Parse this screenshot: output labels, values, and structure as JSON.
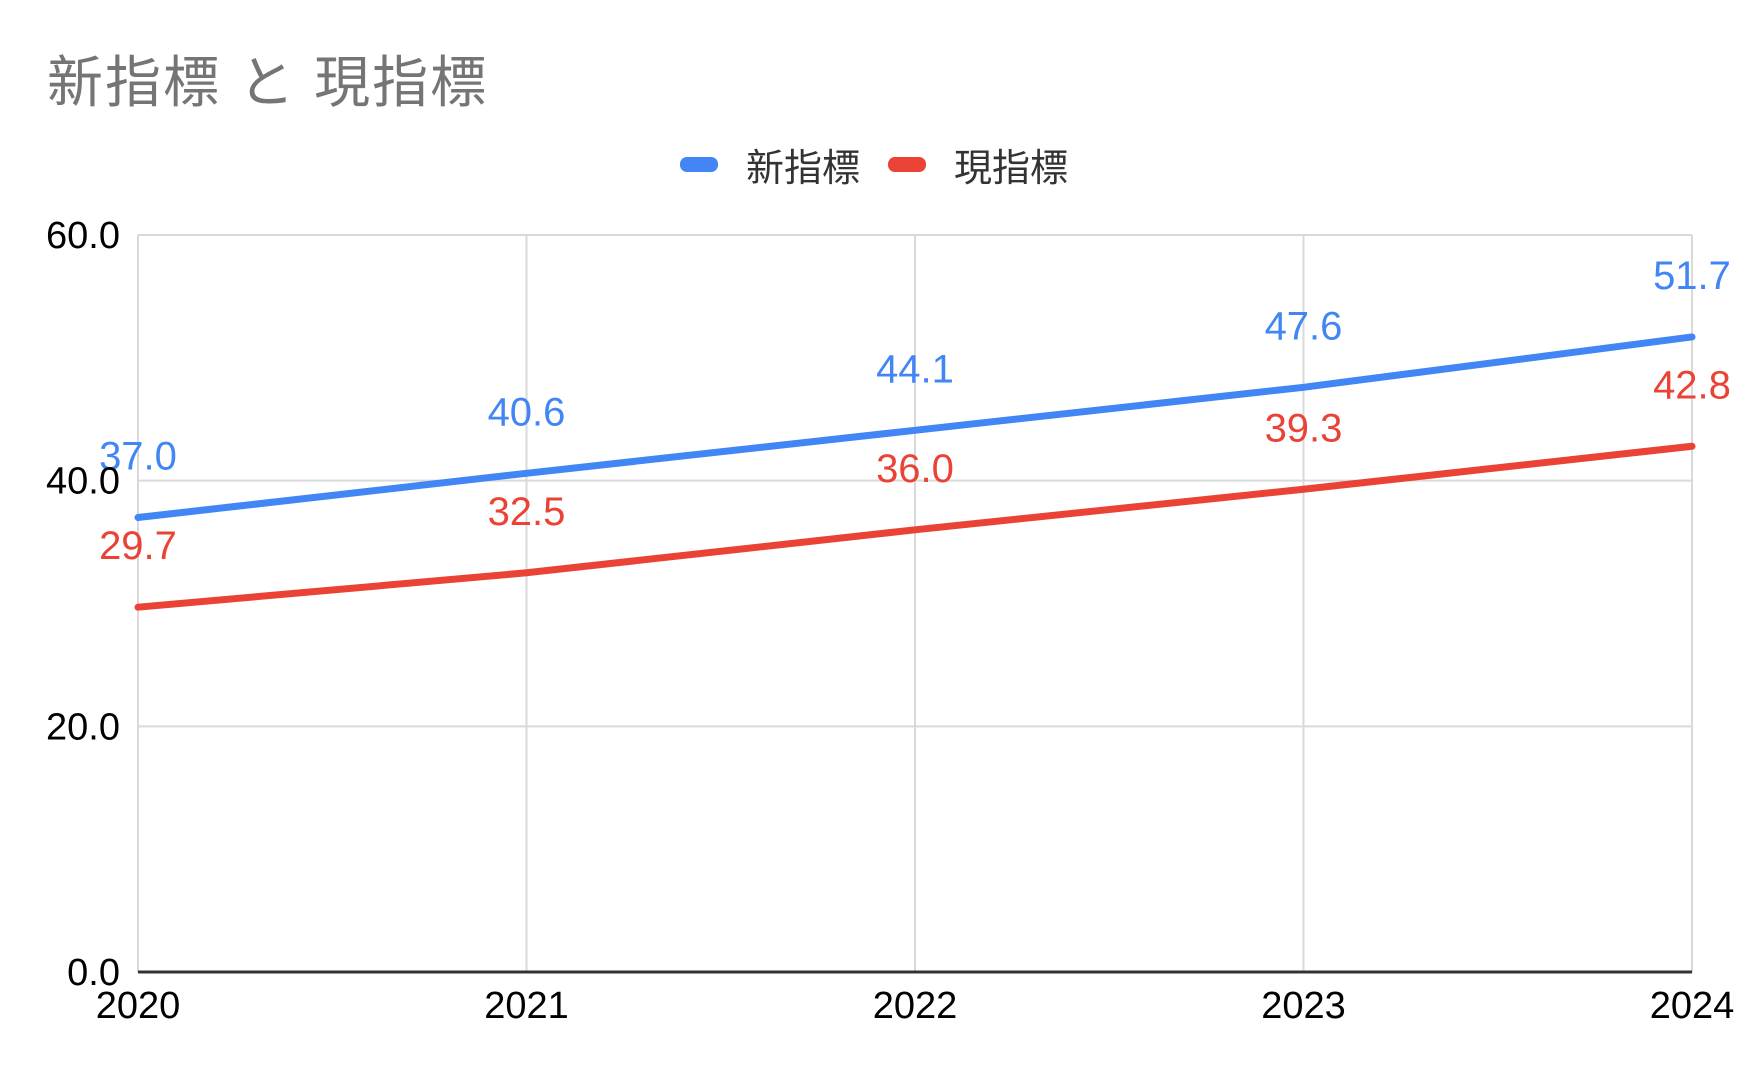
{
  "title": "新指標 と 現指標",
  "colors": {
    "series_blue": "#4285F4",
    "series_red": "#EA4335",
    "gridline": "#D9D9D9",
    "axis_line": "#333333",
    "title_text": "#757575",
    "tick_text": "#000000"
  },
  "legend": {
    "items": [
      {
        "label": "新指標",
        "color": "#4285F4"
      },
      {
        "label": "現指標",
        "color": "#EA4335"
      }
    ]
  },
  "chart_data": {
    "type": "line",
    "title": "新指標 と 現指標",
    "x": [
      2020,
      2021,
      2022,
      2023,
      2024
    ],
    "x_tick_labels": [
      "2020",
      "2021",
      "2022",
      "2023",
      "2024"
    ],
    "series": [
      {
        "name": "新指標",
        "color": "#4285F4",
        "values": [
          37.0,
          40.6,
          44.1,
          47.6,
          51.7
        ]
      },
      {
        "name": "現指標",
        "color": "#EA4335",
        "values": [
          29.7,
          32.5,
          36.0,
          39.3,
          42.8
        ]
      }
    ],
    "ylim": [
      0,
      60
    ],
    "yticks": [
      0,
      20,
      40,
      60
    ],
    "ytick_labels": [
      "0.0",
      "20.0",
      "40.0",
      "60.0"
    ],
    "grid": true,
    "legend_position": "top",
    "data_labels": true,
    "data_label_format": "one_decimal"
  }
}
